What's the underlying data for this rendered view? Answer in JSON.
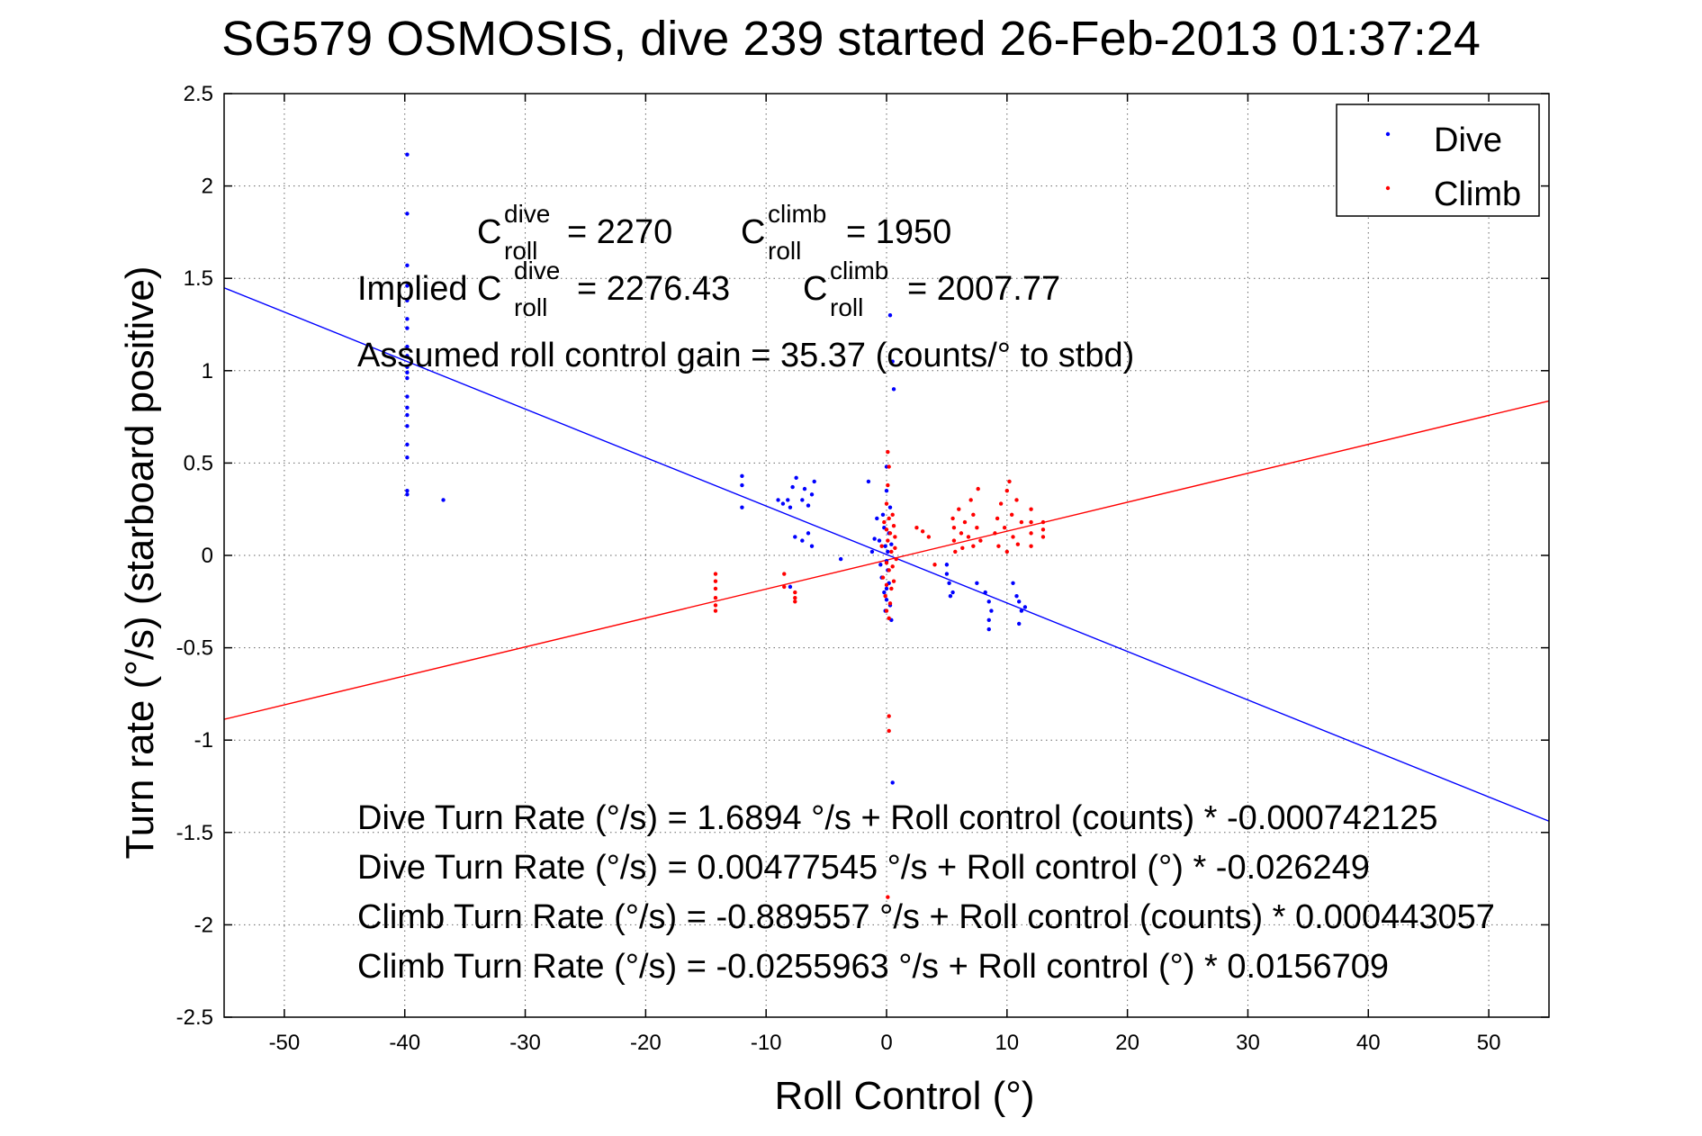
{
  "title": "SG579 OSMOSIS, dive 239 started 26-Feb-2013 01:37:24",
  "chart_data": {
    "type": "scatter",
    "title": "SG579 OSMOSIS, dive 239 started 26-Feb-2013 01:37:24",
    "xlabel": "Roll Control (°)",
    "ylabel": "Turn rate (°/s) (starboard positive)",
    "xlim": [
      -55,
      55
    ],
    "ylim": [
      -2.5,
      2.5
    ],
    "xticks": [
      -50,
      -40,
      -30,
      -20,
      -10,
      0,
      10,
      20,
      30,
      40,
      50
    ],
    "yticks": [
      -2.5,
      -2,
      -1.5,
      -1,
      -0.5,
      0,
      0.5,
      1,
      1.5,
      2,
      2.5
    ],
    "grid": true,
    "legend_position": "top-right",
    "legend": [
      "Dive",
      "Climb"
    ],
    "colors": {
      "dive": "#0000ff",
      "climb": "#ff0000"
    },
    "series": [
      {
        "name": "Dive",
        "color": "#0000ff",
        "points": [
          [
            -39.8,
            2.17
          ],
          [
            -39.8,
            1.85
          ],
          [
            -39.8,
            1.57
          ],
          [
            -39.8,
            1.46
          ],
          [
            -39.8,
            1.38
          ],
          [
            -39.8,
            1.28
          ],
          [
            -39.8,
            1.23
          ],
          [
            -39.8,
            1.13
          ],
          [
            -39.8,
            1.08
          ],
          [
            -39.8,
            1.02
          ],
          [
            -39.8,
            0.99
          ],
          [
            -39.8,
            0.96
          ],
          [
            -39.8,
            0.86
          ],
          [
            -39.8,
            0.8
          ],
          [
            -39.8,
            0.76
          ],
          [
            -39.8,
            0.7
          ],
          [
            -39.8,
            0.6
          ],
          [
            -39.8,
            0.53
          ],
          [
            -39.8,
            0.35
          ],
          [
            -39.8,
            0.33
          ],
          [
            -36.8,
            0.3
          ],
          [
            -12,
            0.43
          ],
          [
            -12,
            0.38
          ],
          [
            -12,
            0.26
          ],
          [
            -9,
            0.3
          ],
          [
            -8.6,
            0.28
          ],
          [
            -8.2,
            0.3
          ],
          [
            -8,
            0.26
          ],
          [
            -7.8,
            0.37
          ],
          [
            -7.5,
            0.42
          ],
          [
            -7,
            0.3
          ],
          [
            -6.8,
            0.36
          ],
          [
            -6.5,
            0.27
          ],
          [
            -6.2,
            0.33
          ],
          [
            -6,
            0.4
          ],
          [
            -7.6,
            0.1
          ],
          [
            -7,
            0.08
          ],
          [
            -6.5,
            0.12
          ],
          [
            -6.2,
            0.05
          ],
          [
            -8,
            -0.17
          ],
          [
            -3.8,
            -0.02
          ],
          [
            -1.2,
            0.02
          ],
          [
            -1,
            0.09
          ],
          [
            -0.8,
            0.2
          ],
          [
            -0.6,
            0.08
          ],
          [
            -0.5,
            -0.05
          ],
          [
            -0.4,
            -0.12
          ],
          [
            -0.3,
            0.22
          ],
          [
            -0.2,
            -0.2
          ],
          [
            -0.2,
            0.15
          ],
          [
            -0.1,
            -0.3
          ],
          [
            -0.1,
            0.05
          ],
          [
            0,
            0.48
          ],
          [
            0,
            0.35
          ],
          [
            0,
            -0.03
          ],
          [
            0,
            -0.18
          ],
          [
            0,
            -0.24
          ],
          [
            0.1,
            0.02
          ],
          [
            0.1,
            -0.08
          ],
          [
            0.2,
            0.12
          ],
          [
            0.2,
            -0.15
          ],
          [
            0.3,
            0.26
          ],
          [
            0.3,
            -0.27
          ],
          [
            0.4,
            0.06
          ],
          [
            0.4,
            -0.35
          ],
          [
            0.3,
            1.3
          ],
          [
            0.5,
            1.05
          ],
          [
            0.6,
            0.9
          ],
          [
            0.5,
            -1.23
          ],
          [
            -1.5,
            0.4
          ],
          [
            5,
            -0.05
          ],
          [
            5,
            -0.1
          ],
          [
            5.2,
            -0.15
          ],
          [
            5.5,
            -0.2
          ],
          [
            5.3,
            -0.22
          ],
          [
            7.5,
            -0.15
          ],
          [
            8.2,
            -0.2
          ],
          [
            8.5,
            -0.25
          ],
          [
            8.7,
            -0.3
          ],
          [
            8.5,
            -0.35
          ],
          [
            8.5,
            -0.4
          ],
          [
            10.5,
            -0.15
          ],
          [
            10.8,
            -0.22
          ],
          [
            11,
            -0.25
          ],
          [
            11.2,
            -0.3
          ],
          [
            11.5,
            -0.28
          ],
          [
            11,
            -0.37
          ]
        ]
      },
      {
        "name": "Climb",
        "color": "#ff0000",
        "points": [
          [
            -14.2,
            -0.1
          ],
          [
            -14.2,
            -0.14
          ],
          [
            -14.2,
            -0.18
          ],
          [
            -14.2,
            -0.23
          ],
          [
            -14.2,
            -0.27
          ],
          [
            -14.2,
            -0.3
          ],
          [
            -8.5,
            -0.1
          ],
          [
            -8.5,
            -0.17
          ],
          [
            -7.6,
            -0.2
          ],
          [
            -7.6,
            -0.23
          ],
          [
            -7.6,
            -0.25
          ],
          [
            -0.4,
            0.05
          ],
          [
            -0.3,
            -0.12
          ],
          [
            -0.2,
            0.18
          ],
          [
            -0.1,
            -0.22
          ],
          [
            0,
            0.28
          ],
          [
            0,
            0.14
          ],
          [
            0,
            -0.04
          ],
          [
            0,
            -0.16
          ],
          [
            0,
            -0.3
          ],
          [
            0.1,
            0.08
          ],
          [
            0.1,
            0.38
          ],
          [
            0.2,
            -0.08
          ],
          [
            0.2,
            0.2
          ],
          [
            0.3,
            -0.26
          ],
          [
            0.3,
            0.12
          ],
          [
            0.4,
            0.02
          ],
          [
            0.4,
            -0.18
          ],
          [
            0.5,
            0.22
          ],
          [
            0.5,
            -0.06
          ],
          [
            0.6,
            0.16
          ],
          [
            0.6,
            -0.14
          ],
          [
            0.7,
            0.04
          ],
          [
            0.7,
            0.1
          ],
          [
            0.8,
            -0.02
          ],
          [
            0.1,
            0.56
          ],
          [
            0.2,
            0.48
          ],
          [
            0.2,
            -0.34
          ],
          [
            0.2,
            -0.87
          ],
          [
            0.2,
            -0.95
          ],
          [
            0.1,
            -1.85
          ],
          [
            2.5,
            0.15
          ],
          [
            3,
            0.13
          ],
          [
            3.5,
            0.1
          ],
          [
            4,
            -0.05
          ],
          [
            5.5,
            0.2
          ],
          [
            5.6,
            0.15
          ],
          [
            5.6,
            0.08
          ],
          [
            5.7,
            0.02
          ],
          [
            6,
            0.25
          ],
          [
            6.2,
            0.12
          ],
          [
            6.3,
            0.04
          ],
          [
            6.5,
            0.18
          ],
          [
            6.8,
            0.1
          ],
          [
            7,
            0.3
          ],
          [
            7.2,
            0.22
          ],
          [
            7.2,
            0.05
          ],
          [
            7.5,
            0.15
          ],
          [
            7.6,
            0.36
          ],
          [
            7.8,
            0.08
          ],
          [
            9,
            0.12
          ],
          [
            9.2,
            0.2
          ],
          [
            9.3,
            0.05
          ],
          [
            9.5,
            0.28
          ],
          [
            9.8,
            0.15
          ],
          [
            10,
            0.02
          ],
          [
            10,
            0.35
          ],
          [
            10.2,
            0.4
          ],
          [
            10.4,
            0.22
          ],
          [
            10.5,
            0.1
          ],
          [
            10.8,
            0.3
          ],
          [
            10.9,
            0.06
          ],
          [
            11.2,
            0.18
          ],
          [
            12,
            0.25
          ],
          [
            12,
            0.18
          ],
          [
            12,
            0.12
          ],
          [
            12,
            0.05
          ],
          [
            13,
            0.18
          ],
          [
            13,
            0.14
          ],
          [
            13,
            0.1
          ]
        ]
      }
    ],
    "fits": [
      {
        "series": "Dive",
        "color": "#0000ff",
        "intercept": 0.00477545,
        "slope": -0.026249
      },
      {
        "series": "Climb",
        "color": "#ff0000",
        "intercept": -0.0255963,
        "slope": 0.0156709
      }
    ],
    "annotations": {
      "c_dive_sup": "dive",
      "c_climb_sup": "climb",
      "roll_sub": "roll",
      "c_letter": "C",
      "c_dive_value": "= 2270",
      "c_climb_value": "= 1950",
      "implied_label": "Implied C",
      "implied_dive_value": "= 2276.43",
      "implied_climb_value": "= 2007.77",
      "gain_text": "Assumed roll control gain = 35.37 (counts/° to stbd)",
      "equations": [
        "Dive Turn Rate (°/s) = 1.6894 °/s + Roll control (counts) * -0.000742125",
        "Dive Turn Rate (°/s) = 0.00477545 °/s + Roll control (°) * -0.026249",
        "Climb Turn Rate (°/s) = -0.889557 °/s + Roll control (counts) * 0.000443057",
        "Climb Turn Rate (°/s) = -0.0255963 °/s + Roll control (°) * 0.0156709"
      ]
    }
  }
}
